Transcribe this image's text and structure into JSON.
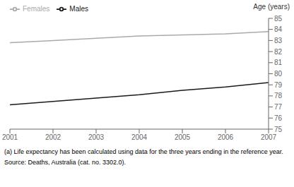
{
  "chart_data": {
    "type": "line",
    "x": [
      2001,
      2002,
      2003,
      2004,
      2005,
      2006,
      2007
    ],
    "series": [
      {
        "name": "Males",
        "color": "#1a1a1a",
        "values": [
          77.2,
          77.5,
          77.8,
          78.1,
          78.5,
          78.8,
          79.2
        ]
      },
      {
        "name": "Females",
        "color": "#aaaaaa",
        "values": [
          82.8,
          83.0,
          83.2,
          83.4,
          83.5,
          83.6,
          83.8
        ]
      }
    ],
    "xlim": [
      2001,
      2007
    ],
    "xticks": [
      2001,
      2002,
      2003,
      2004,
      2005,
      2006,
      2007
    ],
    "ylim": [
      75,
      85
    ],
    "yticks": [
      75,
      76,
      77,
      78,
      79,
      80,
      81,
      82,
      83,
      84,
      85
    ],
    "y_label": "Age (years)",
    "legend": "upper left",
    "grid": false,
    "annotations": [
      "(a) Life expectancy has been calculated using data for the three years ending in the reference year.",
      "Source: Deaths, Australia (cat. no. 3302.0)."
    ]
  }
}
